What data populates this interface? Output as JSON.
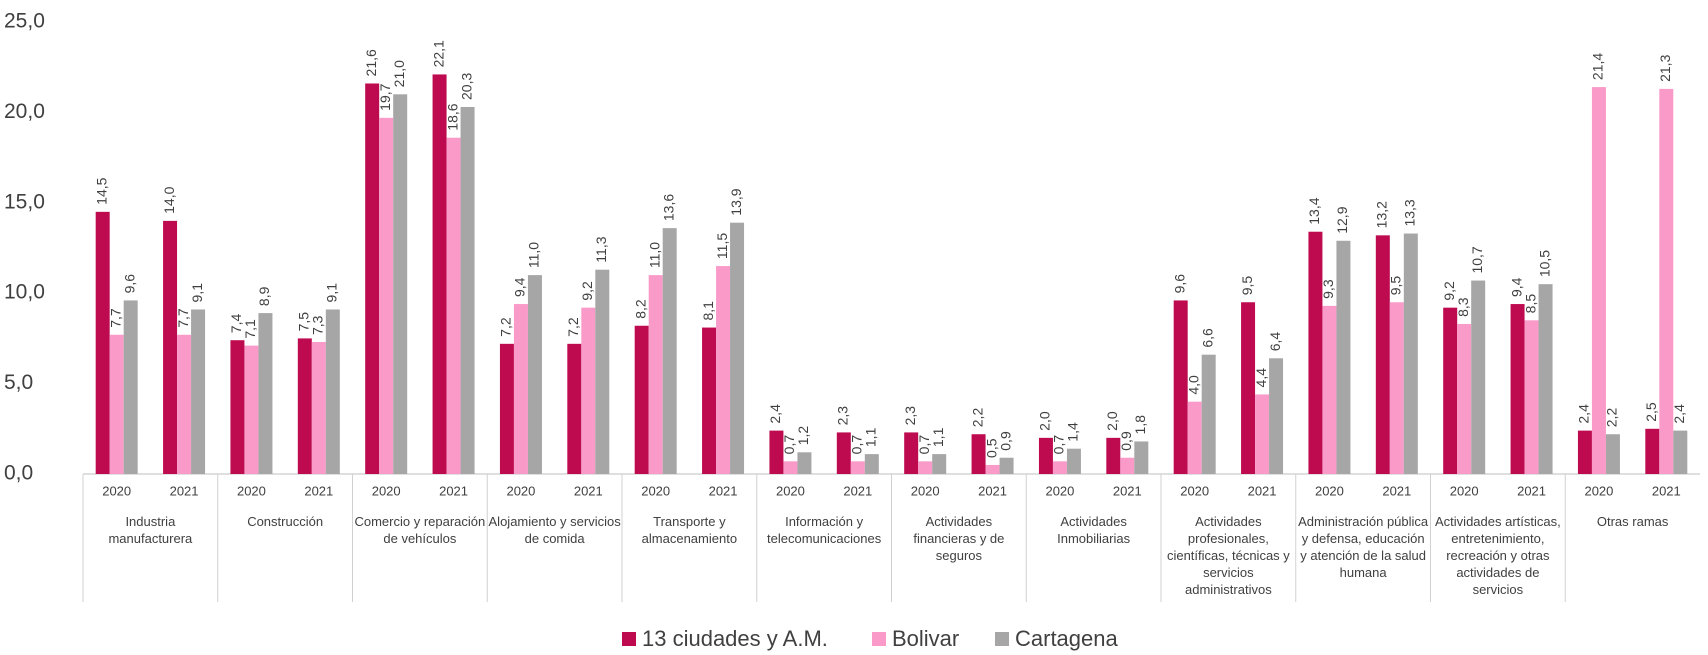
{
  "chart_data": {
    "type": "bar",
    "categories": [
      "2020",
      "2021",
      "2020",
      "2021",
      "2020",
      "2021",
      "2020",
      "2021",
      "2020",
      "2021",
      "2020",
      "2021",
      "2020",
      "2021",
      "2020",
      "2021",
      "2020",
      "2021",
      "2020",
      "2021",
      "2020",
      "2021",
      "2020",
      "2021"
    ],
    "groups": [
      "Industria manufacturera",
      "Construcción",
      "Comercio y reparación de vehículos",
      "Alojamiento y servicios de comida",
      "Transporte y almacenamiento",
      "Información y telecomunicaciones",
      "Actividades financieras y de seguros",
      "Actividades Inmobiliarias",
      "Actividades profesionales, científicas, técnicas y servicios administrativos",
      "Administración pública y defensa, educación y atención de la salud humana",
      "Actividades artísticas, entretenimiento, recreación y otras actividades de servicios",
      "Otras ramas"
    ],
    "series": [
      {
        "name": "13 ciudades y A.M.",
        "color": "#be0b4f",
        "values": [
          14.5,
          14.0,
          7.4,
          7.5,
          21.6,
          22.1,
          7.2,
          7.2,
          8.2,
          8.1,
          2.4,
          2.3,
          2.3,
          2.2,
          2.0,
          2.0,
          9.6,
          9.5,
          13.4,
          13.2,
          9.2,
          9.4,
          2.4,
          2.5
        ],
        "value_labels": [
          "14,5",
          "14,0",
          "7,4",
          "7,5",
          "21,6",
          "22,1",
          "7,2",
          "7,2",
          "8,2",
          "8,1",
          "2,4",
          "2,3",
          "2,3",
          "2,2",
          "2,0",
          "2,0",
          "9,6",
          "9,5",
          "13,4",
          "13,2",
          "9,2",
          "9,4",
          "2,4",
          "2,5"
        ]
      },
      {
        "name": "Bolivar",
        "color": "#f99ac9",
        "values": [
          7.7,
          7.7,
          7.1,
          7.3,
          19.7,
          18.6,
          9.4,
          9.2,
          11.0,
          11.5,
          0.7,
          0.7,
          0.7,
          0.5,
          0.7,
          0.9,
          4.0,
          4.4,
          9.3,
          9.5,
          8.3,
          8.5,
          21.4,
          21.3
        ],
        "value_labels": [
          "7,7",
          "7,7",
          "7,1",
          "7,3",
          "19,7",
          "18,6",
          "9,4",
          "9,2",
          "11,0",
          "11,5",
          "0,7",
          "0,7",
          "0,7",
          "0,5",
          "0,7",
          "0,9",
          "4,0",
          "4,4",
          "9,3",
          "9,5",
          "8,3",
          "8,5",
          "21,4",
          "21,3"
        ]
      },
      {
        "name": "Cartagena",
        "color": "#a6a6a6",
        "values": [
          9.6,
          9.1,
          8.9,
          9.1,
          21.0,
          20.3,
          11.0,
          11.3,
          13.6,
          13.9,
          1.2,
          1.1,
          1.1,
          0.9,
          1.4,
          1.8,
          6.6,
          6.4,
          12.9,
          13.3,
          10.7,
          10.5,
          2.2,
          2.4
        ],
        "value_labels": [
          "9,6",
          "9,1",
          "8,9",
          "9,1",
          "21,0",
          "20,3",
          "11,0",
          "11,3",
          "13,6",
          "13,9",
          "1,2",
          "1,1",
          "1,1",
          "0,9",
          "1,4",
          "1,8",
          "6,6",
          "6,4",
          "12,9",
          "13,3",
          "10,7",
          "10,5",
          "2,2",
          "2,4"
        ]
      }
    ],
    "ylim": [
      0,
      25
    ],
    "yticks": [
      {
        "value": 0,
        "label": "0,0"
      },
      {
        "value": 5,
        "label": "5,0"
      },
      {
        "value": 10,
        "label": "10,0"
      },
      {
        "value": 15,
        "label": "15,0"
      },
      {
        "value": 20,
        "label": "20,0"
      },
      {
        "value": 25,
        "label": "25,0"
      }
    ],
    "grid": false,
    "legend": "bottom"
  }
}
